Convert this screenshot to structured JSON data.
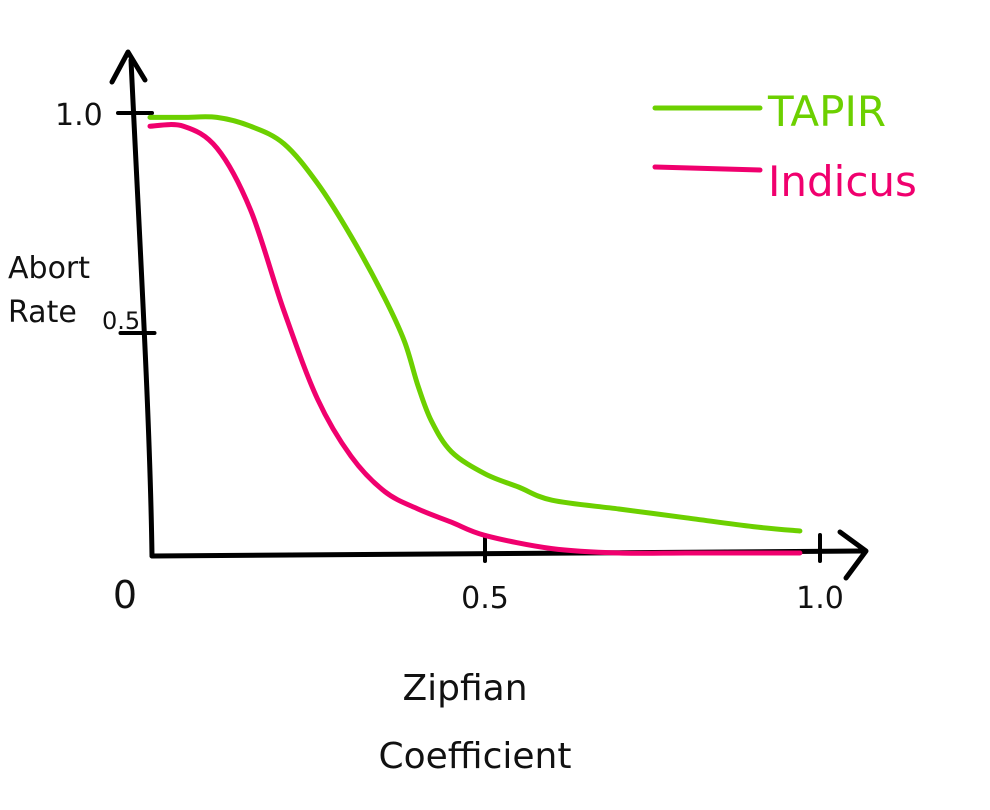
{
  "chart_data": {
    "type": "line",
    "title": "",
    "xlabel_lines": [
      "Zipfian",
      "Coefficient"
    ],
    "ylabel_lines": [
      "Abort",
      "Rate"
    ],
    "xlim": [
      0,
      1.0
    ],
    "ylim": [
      0,
      1.0
    ],
    "x_ticks": [
      {
        "value": 0,
        "label": "0"
      },
      {
        "value": 0.5,
        "label": "0.5"
      },
      {
        "value": 1.0,
        "label": "1.0"
      }
    ],
    "y_ticks": [
      {
        "value": 0.5,
        "label": "0.5"
      },
      {
        "value": 1.0,
        "label": "1.0"
      }
    ],
    "grid": false,
    "legend_position": "top-right",
    "series": [
      {
        "name": "TAPIR",
        "color": "#6cd000",
        "points": [
          [
            0.0,
            0.99
          ],
          [
            0.05,
            0.99
          ],
          [
            0.1,
            0.99
          ],
          [
            0.15,
            0.97
          ],
          [
            0.2,
            0.93
          ],
          [
            0.25,
            0.84
          ],
          [
            0.3,
            0.72
          ],
          [
            0.35,
            0.58
          ],
          [
            0.38,
            0.48
          ],
          [
            0.4,
            0.38
          ],
          [
            0.42,
            0.3
          ],
          [
            0.45,
            0.23
          ],
          [
            0.5,
            0.18
          ],
          [
            0.55,
            0.15
          ],
          [
            0.6,
            0.12
          ],
          [
            0.7,
            0.1
          ],
          [
            0.8,
            0.08
          ],
          [
            0.9,
            0.06
          ],
          [
            0.97,
            0.05
          ]
        ]
      },
      {
        "name": "Indicus",
        "color": "#f0006e",
        "points": [
          [
            0.0,
            0.97
          ],
          [
            0.05,
            0.97
          ],
          [
            0.1,
            0.92
          ],
          [
            0.15,
            0.78
          ],
          [
            0.2,
            0.55
          ],
          [
            0.25,
            0.35
          ],
          [
            0.3,
            0.22
          ],
          [
            0.35,
            0.14
          ],
          [
            0.4,
            0.1
          ],
          [
            0.45,
            0.07
          ],
          [
            0.5,
            0.04
          ],
          [
            0.6,
            0.01
          ],
          [
            0.7,
            0.0
          ],
          [
            0.8,
            0.0
          ],
          [
            0.9,
            0.0
          ],
          [
            0.97,
            0.0
          ]
        ]
      }
    ]
  }
}
